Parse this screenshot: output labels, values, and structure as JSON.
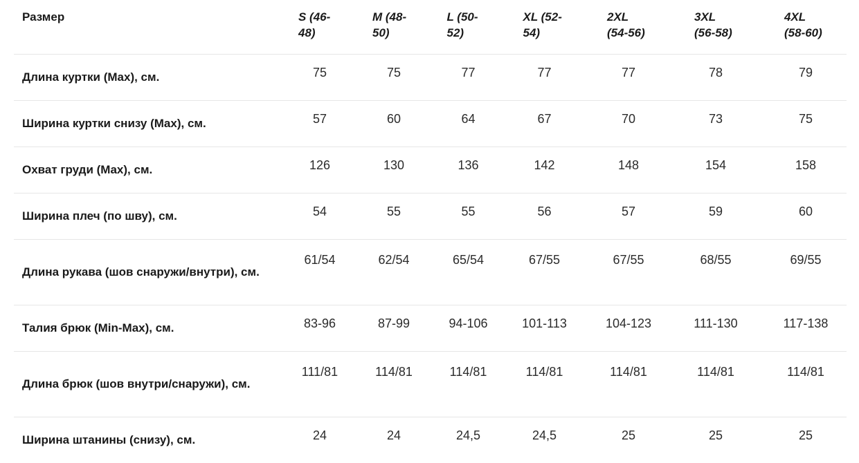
{
  "table": {
    "header": {
      "label": "Размер",
      "sizes": [
        "S (46-48)",
        "M (48-50)",
        "L (50-52)",
        "XL (52-54)",
        "2XL (54-56)",
        "3XL (56-58)",
        "4XL (58-60)"
      ]
    },
    "rows": [
      {
        "label": "Длина куртки (Max), см.",
        "values": [
          "75",
          "75",
          "77",
          "77",
          "77",
          "78",
          "79"
        ]
      },
      {
        "label": "Ширина куртки снизу (Max), см.",
        "values": [
          "57",
          "60",
          "64",
          "67",
          "70",
          "73",
          "75"
        ]
      },
      {
        "label": "Охват груди (Max), см.",
        "values": [
          "126",
          "130",
          "136",
          "142",
          "148",
          "154",
          "158"
        ]
      },
      {
        "label": "Ширина плеч (по шву), см.",
        "values": [
          "54",
          "55",
          "55",
          "56",
          "57",
          "59",
          "60"
        ]
      },
      {
        "label": "Длина рукава (шов снаружи/внутри), см.",
        "values": [
          "61/54",
          "62/54",
          "65/54",
          "67/55",
          "67/55",
          "68/55",
          "69/55"
        ]
      },
      {
        "label": "Талия брюк (Min-Max), см.",
        "values": [
          "83-96",
          "87-99",
          "94-106",
          "101-113",
          "104-123",
          "111-130",
          "117-138"
        ]
      },
      {
        "label": "Длина брюк (шов внутри/снаружи), см.",
        "values": [
          "111/81",
          "114/81",
          "114/81",
          "114/81",
          "114/81",
          "114/81",
          "114/81"
        ]
      },
      {
        "label": "Ширина штанины (снизу), см.",
        "values": [
          "24",
          "24",
          "24,5",
          "24,5",
          "25",
          "25",
          "25"
        ]
      }
    ]
  }
}
